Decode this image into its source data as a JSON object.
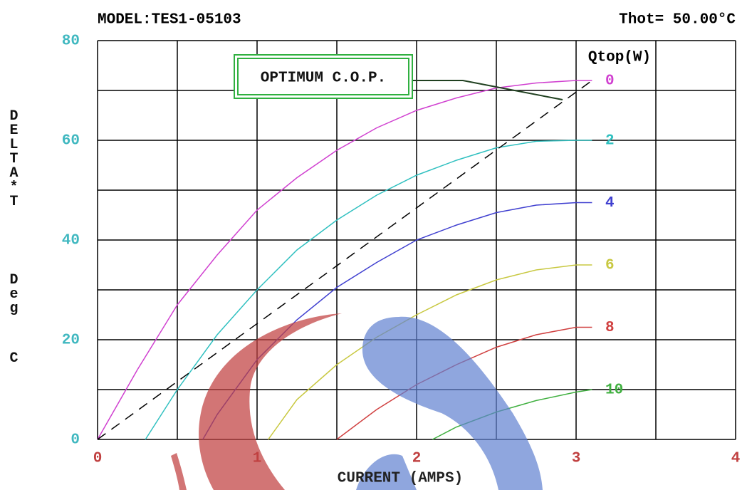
{
  "chart_data": {
    "type": "line",
    "title": "MODEL:TES1-05103",
    "subtitle": "Thot= 50.00°C",
    "x_label": "CURRENT (AMPS)",
    "y_label": [
      "DELTA*T",
      "Deg",
      "C"
    ],
    "xlim": [
      0,
      4
    ],
    "ylim": [
      0,
      80
    ],
    "xticks": [
      0,
      1,
      2,
      3,
      4
    ],
    "yticks": [
      0,
      20,
      40,
      60,
      80
    ],
    "x_gridlines": [
      0,
      0.5,
      1,
      1.5,
      2,
      2.5,
      3,
      3.5,
      4
    ],
    "y_gridlines": [
      0,
      10,
      20,
      30,
      40,
      50,
      60,
      70,
      80
    ],
    "grid": true,
    "legend_title": "Qtop(W)",
    "legend": "right",
    "series": [
      {
        "name": "0",
        "color": "#d040d0",
        "x": [
          0,
          0.25,
          0.5,
          0.75,
          1,
          1.25,
          1.5,
          1.75,
          2,
          2.25,
          2.5,
          2.75,
          3,
          3.1
        ],
        "values": [
          0,
          14,
          27,
          37,
          46,
          52.5,
          58,
          62.5,
          66,
          68.5,
          70.5,
          71.5,
          72,
          72
        ]
      },
      {
        "name": "2",
        "color": "#30c0c0",
        "x": [
          0.3,
          0.5,
          0.75,
          1,
          1.25,
          1.5,
          1.75,
          2,
          2.25,
          2.5,
          2.75,
          3,
          3.1
        ],
        "values": [
          0,
          10,
          21,
          30,
          38,
          44,
          49,
          53,
          56,
          58.5,
          59.8,
          60,
          60
        ]
      },
      {
        "name": "4",
        "color": "#4040d0",
        "x": [
          0.66,
          0.75,
          1,
          1.25,
          1.5,
          1.75,
          2,
          2.25,
          2.5,
          2.75,
          3,
          3.1
        ],
        "values": [
          0,
          5,
          16,
          24,
          30.5,
          35.5,
          40,
          43,
          45.5,
          47,
          47.5,
          47.5
        ]
      },
      {
        "name": "6",
        "color": "#c8c840",
        "x": [
          1.07,
          1.25,
          1.5,
          1.75,
          2,
          2.25,
          2.5,
          2.75,
          3,
          3.1
        ],
        "values": [
          0,
          8,
          15,
          20.5,
          25,
          29,
          32,
          34,
          35,
          35
        ]
      },
      {
        "name": "8",
        "color": "#d04040",
        "x": [
          1.5,
          1.75,
          2,
          2.25,
          2.5,
          2.75,
          3,
          3.1
        ],
        "values": [
          0,
          6,
          11,
          15,
          18.5,
          21,
          22.5,
          22.5
        ]
      },
      {
        "name": "10",
        "color": "#40b040",
        "x": [
          2.1,
          2.25,
          2.5,
          2.75,
          3,
          3.1
        ],
        "values": [
          0,
          2.5,
          5.5,
          7.8,
          9.5,
          10
        ]
      }
    ],
    "optimum_cop": {
      "label": "OPTIMUM C.O.P.",
      "color": "#000000",
      "dashed": true,
      "x": [
        0,
        3.1
      ],
      "values": [
        0,
        72
      ]
    }
  }
}
